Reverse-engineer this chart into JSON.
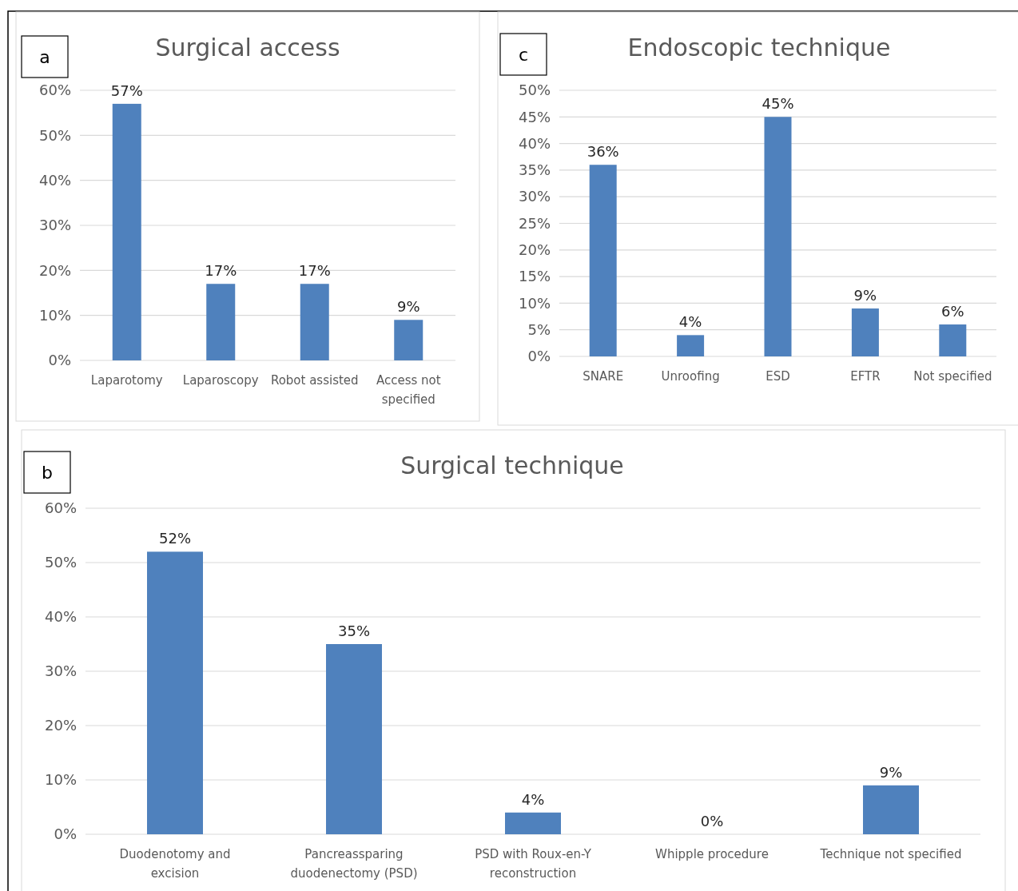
{
  "chart_data": [
    {
      "type": "bar",
      "title": "Surgical access",
      "annotations": [
        "a"
      ],
      "categories": [
        "Laparotomy",
        "Laparoscopy",
        "Robot assisted",
        "Access not specified"
      ],
      "values": [
        57,
        17,
        17,
        9
      ],
      "value_labels": [
        "57%",
        "17%",
        "17%",
        "9%"
      ],
      "color": "#4f81bd",
      "ylim": [
        0,
        60
      ],
      "yticks": [
        {
          "value": 0,
          "label": "0%"
        },
        {
          "value": 10,
          "label": "10%"
        },
        {
          "value": 20,
          "label": "20%"
        },
        {
          "value": 30,
          "label": "30%"
        },
        {
          "value": 40,
          "label": "40%"
        },
        {
          "value": 50,
          "label": "50%"
        },
        {
          "value": 60,
          "label": "60%"
        }
      ],
      "grid": "y"
    },
    {
      "type": "bar",
      "title": "Endoscopic technique",
      "annotations": [
        "c"
      ],
      "categories": [
        "SNARE",
        "Unroofing",
        "ESD",
        "EFTR",
        "Not specified"
      ],
      "values": [
        36,
        4,
        45,
        9,
        6
      ],
      "value_labels": [
        "36%",
        "4%",
        "45%",
        "9%",
        "6%"
      ],
      "color": "#4f81bd",
      "ylim": [
        0,
        50
      ],
      "yticks": [
        {
          "value": 0,
          "label": "0%"
        },
        {
          "value": 5,
          "label": "5%"
        },
        {
          "value": 10,
          "label": "10%"
        },
        {
          "value": 15,
          "label": "15%"
        },
        {
          "value": 20,
          "label": "20%"
        },
        {
          "value": 25,
          "label": "25%"
        },
        {
          "value": 30,
          "label": "30%"
        },
        {
          "value": 35,
          "label": "35%"
        },
        {
          "value": 40,
          "label": "40%"
        },
        {
          "value": 45,
          "label": "45%"
        },
        {
          "value": 50,
          "label": "50%"
        }
      ],
      "grid": "y"
    },
    {
      "type": "bar",
      "title": "Surgical technique",
      "annotations": [
        "b"
      ],
      "categories": [
        "Duodenotomy and excision",
        "Pancreassparing duodenectomy (PSD)",
        "PSD with Roux-en-Y reconstruction",
        "Whipple procedure",
        "Technique not specified"
      ],
      "values": [
        52,
        35,
        4,
        0,
        9
      ],
      "value_labels": [
        "52%",
        "35%",
        "4%",
        "0%",
        "9%"
      ],
      "color": "#4f81bd",
      "ylim": [
        0,
        60
      ],
      "yticks": [
        {
          "value": 0,
          "label": "0%"
        },
        {
          "value": 10,
          "label": "10%"
        },
        {
          "value": 20,
          "label": "20%"
        },
        {
          "value": 30,
          "label": "30%"
        },
        {
          "value": 40,
          "label": "40%"
        },
        {
          "value": 50,
          "label": "50%"
        },
        {
          "value": 60,
          "label": "60%"
        }
      ],
      "grid": "y"
    }
  ]
}
